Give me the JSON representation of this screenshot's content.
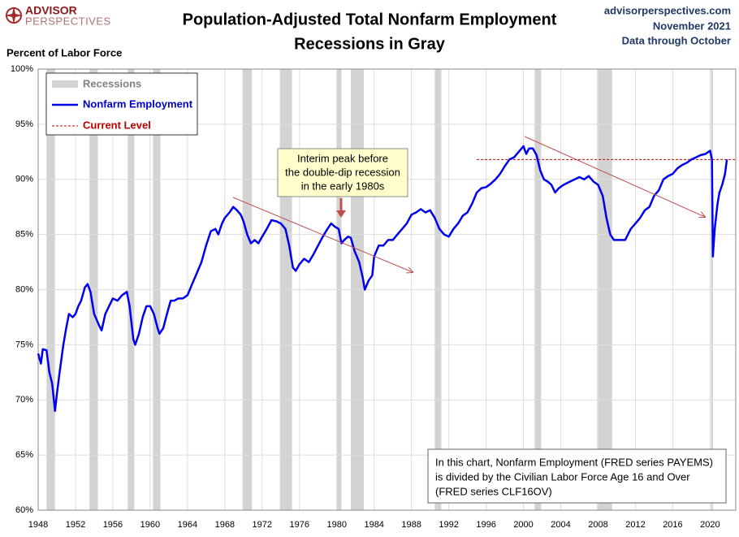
{
  "header": {
    "logo_top": "ADVISOR",
    "logo_bottom": "PERSPECTIVES",
    "site": "advisorperspectives.com",
    "date": "November 2021",
    "data_note": "Data through October"
  },
  "chart_data": {
    "type": "line",
    "title": [
      "Population-Adjusted Total Nonfarm Employment",
      "Recessions in Gray"
    ],
    "y_label": "Percent of Labor Force",
    "xlim": [
      1948,
      2022.75
    ],
    "xticks": [
      1948,
      1952,
      1956,
      1960,
      1964,
      1968,
      1972,
      1976,
      1980,
      1984,
      1988,
      1992,
      1996,
      2000,
      2004,
      2008,
      2012,
      2016,
      2020
    ],
    "ylim": [
      60,
      100
    ],
    "yticks": [
      {
        "value": 60,
        "label": "60%"
      },
      {
        "value": 65,
        "label": "65%"
      },
      {
        "value": 70,
        "label": "70%"
      },
      {
        "value": 75,
        "label": "75%"
      },
      {
        "value": 80,
        "label": "80%"
      },
      {
        "value": 85,
        "label": "85%"
      },
      {
        "value": 90,
        "label": "90%"
      },
      {
        "value": 95,
        "label": "95%"
      },
      {
        "value": 100,
        "label": "100%"
      }
    ],
    "grid": true,
    "legend": "top-left",
    "x": [
      1948.0,
      1948.3,
      1948.5,
      1948.9,
      1949.2,
      1949.5,
      1949.8,
      1950.0,
      1950.3,
      1950.7,
      1951.0,
      1951.3,
      1951.7,
      1952.0,
      1952.3,
      1952.6,
      1953.0,
      1953.3,
      1953.6,
      1954.0,
      1954.5,
      1954.8,
      1955.2,
      1955.6,
      1956.0,
      1956.5,
      1957.0,
      1957.5,
      1957.8,
      1958.2,
      1958.4,
      1958.8,
      1959.2,
      1959.6,
      1960.0,
      1960.4,
      1960.8,
      1961.0,
      1961.4,
      1961.8,
      1962.2,
      1962.6,
      1963.0,
      1963.5,
      1964.0,
      1964.5,
      1965.0,
      1965.5,
      1966.0,
      1966.5,
      1967.0,
      1967.3,
      1967.7,
      1968.0,
      1968.5,
      1968.9,
      1969.3,
      1969.7,
      1970.0,
      1970.4,
      1970.8,
      1971.2,
      1971.6,
      1972.0,
      1972.5,
      1973.0,
      1973.5,
      1974.0,
      1974.5,
      1974.9,
      1975.3,
      1975.6,
      1976.0,
      1976.5,
      1977.0,
      1977.5,
      1978.0,
      1978.5,
      1979.0,
      1979.4,
      1979.8,
      1980.2,
      1980.5,
      1980.8,
      1981.2,
      1981.5,
      1981.9,
      1982.4,
      1982.8,
      1983.0,
      1983.4,
      1983.8,
      1984.0,
      1984.5,
      1985.0,
      1985.5,
      1986.0,
      1986.5,
      1987.0,
      1987.5,
      1988.0,
      1988.5,
      1989.0,
      1989.5,
      1990.0,
      1990.5,
      1991.0,
      1991.5,
      1992.0,
      1992.5,
      1993.0,
      1993.5,
      1994.0,
      1994.5,
      1995.0,
      1995.5,
      1996.0,
      1996.5,
      1997.0,
      1997.5,
      1998.0,
      1998.5,
      1999.0,
      1999.5,
      2000.0,
      2000.3,
      2000.6,
      2001.0,
      2001.4,
      2001.8,
      2002.2,
      2002.6,
      2003.0,
      2003.4,
      2003.8,
      2004.3,
      2005.0,
      2005.5,
      2006.0,
      2006.5,
      2007.0,
      2007.5,
      2008.0,
      2008.5,
      2008.9,
      2009.3,
      2009.7,
      2010.0,
      2010.5,
      2010.9,
      2011.5,
      2012.0,
      2012.5,
      2013.0,
      2013.5,
      2014.0,
      2014.5,
      2015.0,
      2015.5,
      2016.0,
      2016.5,
      2017.0,
      2017.5,
      2018.0,
      2018.5,
      2019.0,
      2019.5,
      2020.0,
      2020.2,
      2020.3,
      2020.5,
      2020.8,
      2021.0,
      2021.3,
      2021.6,
      2021.8
    ],
    "series": [
      {
        "name": "Nonfarm Employment",
        "color": "#0000ee",
        "values": [
          74.2,
          73.3,
          74.6,
          74.5,
          72.5,
          71.5,
          69.0,
          70.5,
          72.5,
          75.0,
          76.5,
          77.8,
          77.5,
          77.8,
          78.5,
          79.0,
          80.2,
          80.5,
          79.8,
          77.8,
          76.8,
          76.3,
          77.8,
          78.5,
          79.2,
          79.0,
          79.5,
          79.8,
          78.5,
          75.5,
          75.0,
          76.0,
          77.5,
          78.5,
          78.5,
          77.8,
          76.5,
          76.0,
          76.5,
          77.8,
          79.0,
          79.0,
          79.2,
          79.2,
          79.5,
          80.5,
          81.5,
          82.5,
          84.0,
          85.3,
          85.5,
          85.0,
          86.0,
          86.5,
          87.0,
          87.5,
          87.2,
          86.8,
          86.2,
          85.0,
          84.2,
          84.5,
          84.2,
          84.8,
          85.5,
          86.3,
          86.2,
          86.0,
          85.5,
          84.0,
          82.0,
          81.7,
          82.3,
          82.8,
          82.5,
          83.2,
          84.0,
          84.8,
          85.5,
          86.0,
          85.7,
          85.5,
          84.2,
          84.5,
          84.8,
          84.7,
          83.5,
          82.5,
          81.0,
          80.0,
          80.8,
          81.3,
          83.0,
          84.0,
          84.0,
          84.5,
          84.5,
          85.0,
          85.5,
          86.0,
          86.8,
          87.0,
          87.3,
          87.0,
          87.2,
          86.5,
          85.5,
          85.0,
          84.8,
          85.5,
          86.0,
          86.7,
          87.0,
          87.8,
          88.8,
          89.2,
          89.3,
          89.6,
          90.0,
          90.5,
          91.2,
          91.8,
          92.0,
          92.5,
          93.0,
          92.3,
          92.8,
          92.8,
          92.2,
          90.8,
          90.0,
          89.8,
          89.5,
          88.8,
          89.2,
          89.5,
          89.8,
          90.0,
          90.2,
          90.0,
          90.3,
          89.8,
          89.5,
          88.5,
          86.5,
          85.0,
          84.5,
          84.5,
          84.5,
          84.5,
          85.5,
          86.0,
          86.5,
          87.2,
          87.5,
          88.5,
          89.0,
          90.0,
          90.3,
          90.5,
          91.0,
          91.3,
          91.5,
          91.8,
          92.0,
          92.2,
          92.3,
          92.6,
          91.8,
          83.0,
          85.5,
          87.8,
          88.8,
          89.5,
          90.5,
          91.8
        ]
      }
    ],
    "reference_line": {
      "name": "Current Level",
      "value": 91.8,
      "color": "#c00000"
    },
    "recessions": {
      "name": "Recessions",
      "color": "#d3d3d3",
      "ranges": [
        [
          1948.9,
          1949.8
        ],
        [
          1953.5,
          1954.4
        ],
        [
          1957.6,
          1958.3
        ],
        [
          1960.3,
          1961.1
        ],
        [
          1969.9,
          1970.9
        ],
        [
          1973.9,
          1975.2
        ],
        [
          1980.0,
          1980.5
        ],
        [
          1981.5,
          1982.9
        ],
        [
          1990.5,
          1991.2
        ],
        [
          2001.2,
          2001.9
        ],
        [
          2007.9,
          2009.5
        ],
        [
          2020.1,
          2020.3
        ]
      ]
    },
    "annotation": [
      "Interim peak before",
      "the double-dip recession",
      "in the early 1980s"
    ],
    "note": [
      "In this chart, Nonfarm Employment (FRED series PAYEMS)",
      "is divided by the Civilian Labor Force Age 16 and Over",
      "(FRED series CLF16OV)"
    ]
  }
}
